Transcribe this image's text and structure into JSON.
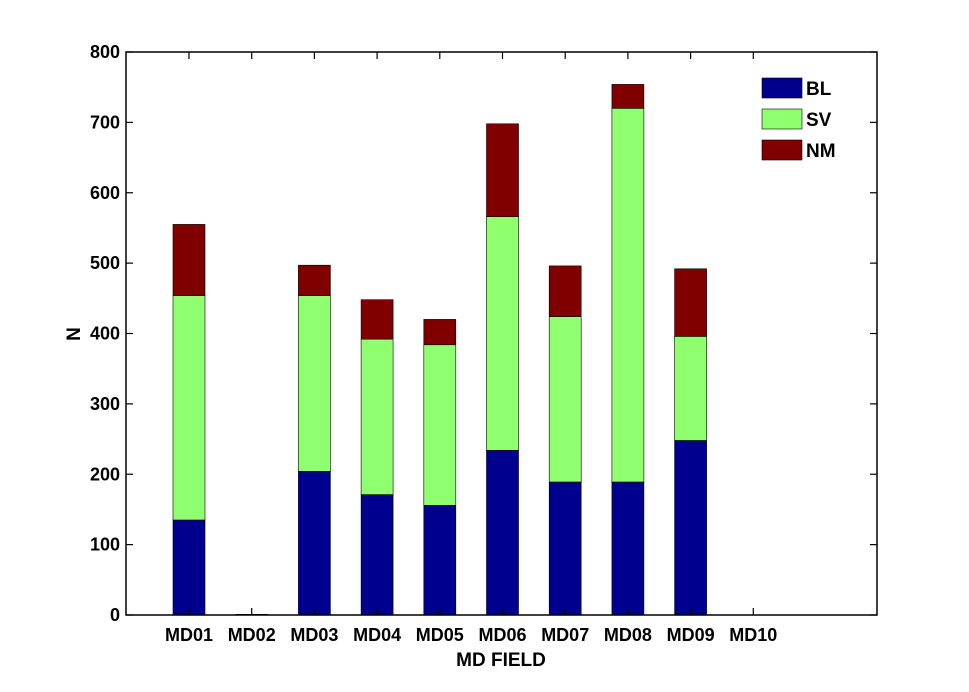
{
  "chart_data": {
    "type": "bar",
    "stacked": true,
    "categories": [
      "MD01",
      "MD02",
      "MD03",
      "MD04",
      "MD05",
      "MD06",
      "MD07",
      "MD08",
      "MD09",
      "MD10"
    ],
    "series": [
      {
        "name": "BL",
        "color": "#00008F",
        "values": [
          135,
          0,
          204,
          171,
          156,
          234,
          189,
          189,
          248,
          0
        ]
      },
      {
        "name": "SV",
        "color": "#8FFF6F",
        "values": [
          319,
          1,
          250,
          221,
          228,
          332,
          235,
          531,
          148,
          0
        ]
      },
      {
        "name": "NM",
        "color": "#800000",
        "values": [
          101,
          0,
          43,
          56,
          36,
          132,
          72,
          34,
          96,
          0
        ]
      }
    ],
    "xlabel": "MD FIELD",
    "ylabel": "N",
    "ylim": [
      0,
      800
    ],
    "yticks": [
      0,
      100,
      200,
      300,
      400,
      500,
      600,
      700,
      800
    ],
    "grid": false,
    "legend_position": "top-right"
  }
}
